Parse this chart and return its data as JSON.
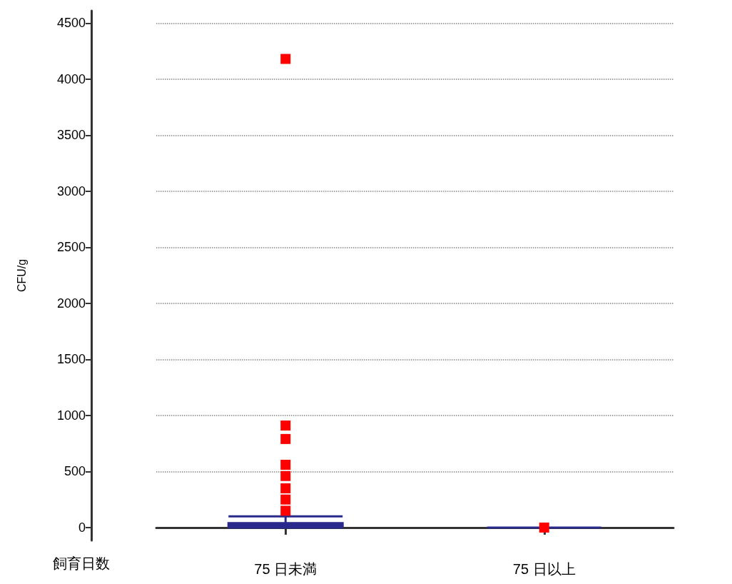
{
  "chart_data": {
    "type": "scatter",
    "xlabel": "飼育日数",
    "ylabel": "CFU/g",
    "categories": [
      "75 日未満",
      "75 日以上"
    ],
    "ylim": [
      -115,
      4610
    ],
    "yticks": [
      0,
      500,
      1000,
      1500,
      2000,
      2500,
      3000,
      3500,
      4000,
      4500
    ],
    "grid": "y",
    "series": [
      {
        "type": "box",
        "color": "#2a2a8c",
        "boxes": [
          {
            "low": 0,
            "q1": 10,
            "median": 20,
            "q3": 40,
            "high": 100
          },
          {
            "low": 0,
            "q1": 0,
            "median": 0,
            "q3": 0,
            "high": 0
          }
        ]
      },
      {
        "color": "#ff0000",
        "marker": "square",
        "x": [
          "75 日未満",
          "75 日未満",
          "75 日未満",
          "75 日未満",
          "75 日未満",
          "75 日未満",
          "75 日未満",
          "75 日未満",
          "75 日以上"
        ],
        "values": [
          4180,
          910,
          790,
          560,
          460,
          350,
          250,
          150,
          0
        ]
      }
    ]
  }
}
